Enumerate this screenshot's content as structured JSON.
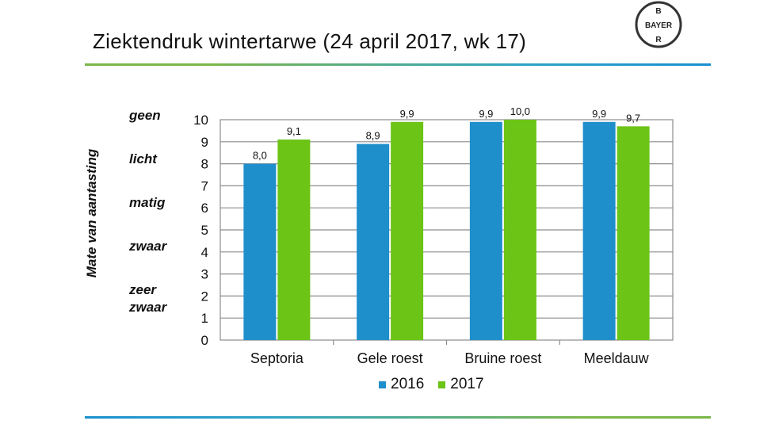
{
  "slide": {
    "title": "Ziektendruk  wintertarwe  (24 april 2017, wk 17)",
    "logo_text": {
      "top": "B",
      "left": "B",
      "center": "A",
      "right": "E",
      "bottom": "R",
      "row": "BAYER"
    }
  },
  "severity_labels": {
    "geen": "geen",
    "licht": "licht",
    "matig": "matig",
    "zwaar": "zwaar",
    "zeer_line1": "zeer",
    "zeer_line2": "zwaar"
  },
  "colors": {
    "s2016": "#1f8fcc",
    "s2017": "#6cc417",
    "grid": "#8c8c8c",
    "rule_green": "#7ab648",
    "rule_blue": "#1a90cf"
  },
  "chart_data": {
    "type": "bar",
    "ylabel": "Mate van aantasting",
    "ylim": [
      0,
      10
    ],
    "yticks": [
      0,
      1,
      2,
      3,
      4,
      5,
      6,
      7,
      8,
      9,
      10
    ],
    "categories": [
      "Septoria",
      "Gele roest",
      "Bruine roest",
      "Meeldauw"
    ],
    "series": [
      {
        "name": "2016",
        "values": [
          8.0,
          8.9,
          9.9,
          9.9
        ],
        "labels": [
          "8,0",
          "8,9",
          "9,9",
          "9,9"
        ]
      },
      {
        "name": "2017",
        "values": [
          9.1,
          9.9,
          10.0,
          9.7
        ],
        "labels": [
          "9,1",
          "9,9",
          "10,0",
          "9,7"
        ]
      }
    ],
    "grid": true,
    "legend": "bottom"
  }
}
